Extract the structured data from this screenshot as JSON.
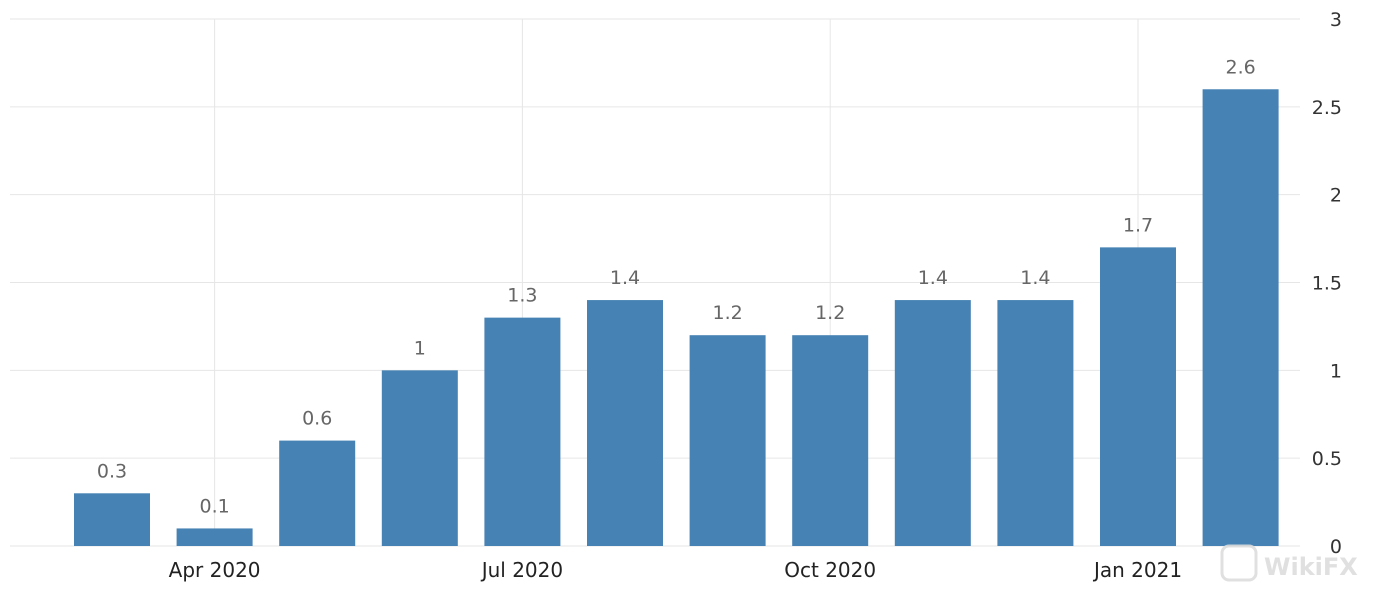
{
  "chart_data": {
    "type": "bar",
    "categories": [
      "Mar 2020",
      "Apr 2020",
      "May 2020",
      "Jun 2020",
      "Jul 2020",
      "Aug 2020",
      "Sep 2020",
      "Oct 2020",
      "Nov 2020",
      "Dec 2020",
      "Jan 2021",
      "Feb 2021"
    ],
    "values": [
      0.3,
      0.1,
      0.6,
      1,
      1.3,
      1.4,
      1.2,
      1.2,
      1.4,
      1.4,
      1.7,
      2.6
    ],
    "data_labels": [
      "0.3",
      "0.1",
      "0.6",
      "1",
      "1.3",
      "1.4",
      "1.2",
      "1.2",
      "1.4",
      "1.4",
      "1.7",
      "2.6"
    ],
    "x_tick_labels": [
      {
        "category": "Apr 2020",
        "label": "Apr 2020"
      },
      {
        "category": "Jul 2020",
        "label": "Jul 2020"
      },
      {
        "category": "Oct 2020",
        "label": "Oct 2020"
      },
      {
        "category": "Jan 2021",
        "label": "Jan 2021"
      }
    ],
    "y_ticks": [
      0,
      0.5,
      1,
      1.5,
      2,
      2.5,
      3
    ],
    "y_tick_labels": [
      "0",
      "0.5",
      "1",
      "1.5",
      "2",
      "2.5",
      "3"
    ],
    "ylim": [
      0,
      3
    ],
    "y_axis_position": "right",
    "grid": true,
    "title": "",
    "xlabel": "",
    "ylabel": "",
    "bar_color": "#4682b4",
    "grid_color": "#e6e6e6"
  },
  "watermark": {
    "text": "WikiFX"
  }
}
